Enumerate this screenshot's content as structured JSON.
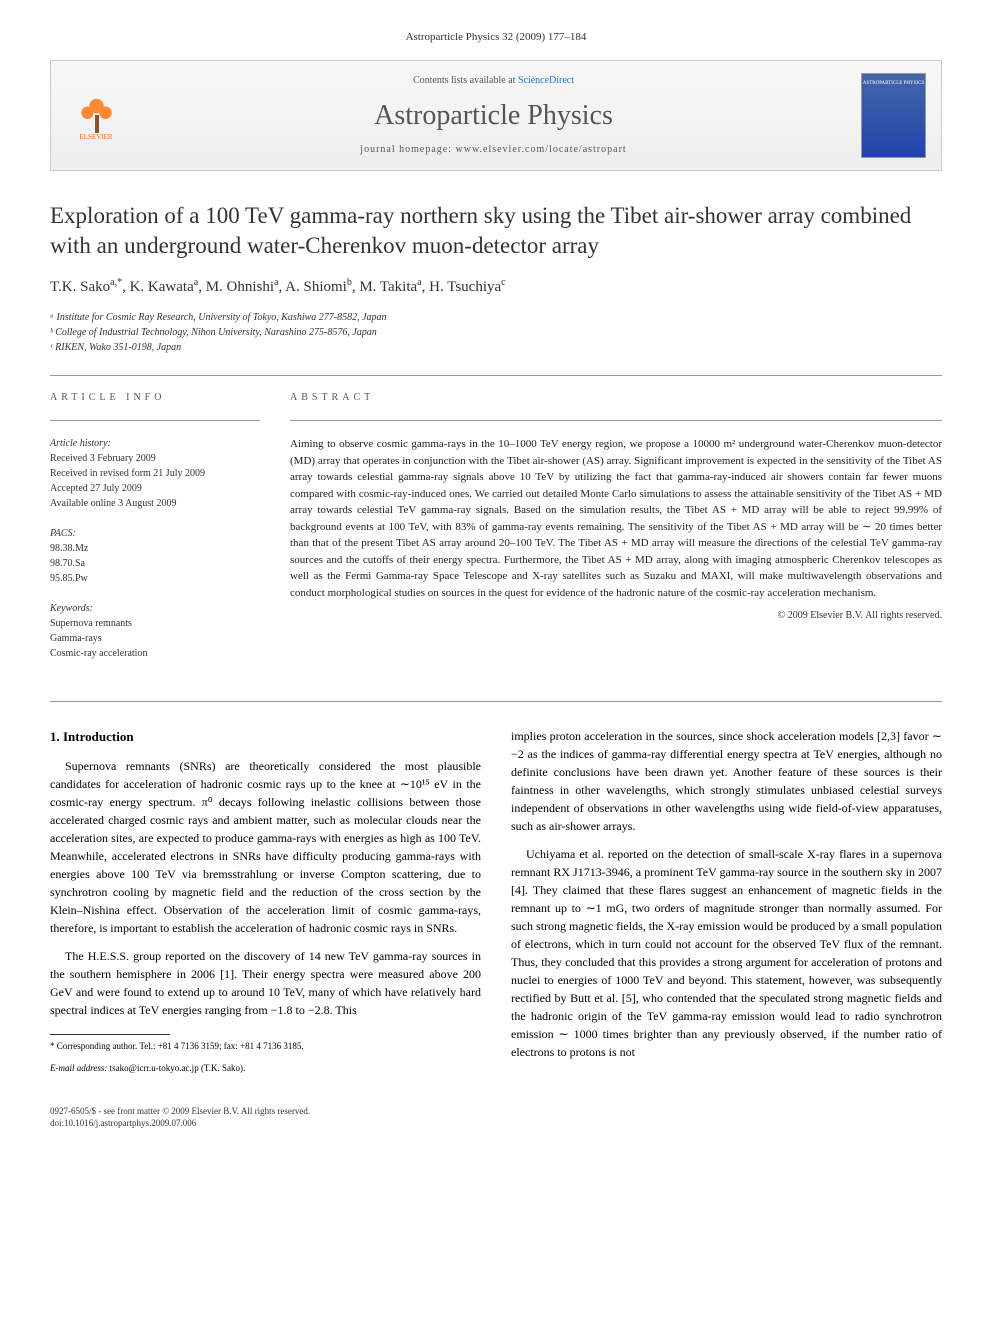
{
  "header": {
    "citation": "Astroparticle Physics 32 (2009) 177–184"
  },
  "banner": {
    "elsevier_label": "ELSEVIER",
    "contents_prefix": "Contents lists available at ",
    "contents_link": "ScienceDirect",
    "journal_name": "Astroparticle Physics",
    "homepage_label": "journal homepage: www.elsevier.com/locate/astropart",
    "cover_text": "ASTROPARTICLE PHYSICS"
  },
  "article": {
    "title": "Exploration of a 100 TeV gamma-ray northern sky using the Tibet air-shower array combined with an underground water-Cherenkov muon-detector array",
    "authors_html": "T.K. Sako<sup>a,*</sup>, K. Kawata<sup>a</sup>, M. Ohnishi<sup>a</sup>, A. Shiomi<sup>b</sup>, M. Takita<sup>a</sup>, H. Tsuchiya<sup>c</sup>",
    "affiliations": [
      "ᵃ Institute for Cosmic Ray Research, University of Tokyo, Kashiwa 277-8582, Japan",
      "ᵇ College of Industrial Technology, Nihon University, Narashino 275-8576, Japan",
      "ᶜ RIKEN, Wako 351-0198, Japan"
    ]
  },
  "info": {
    "heading": "ARTICLE INFO",
    "history_label": "Article history:",
    "history": [
      "Received 3 February 2009",
      "Received in revised form 21 July 2009",
      "Accepted 27 July 2009",
      "Available online 3 August 2009"
    ],
    "pacs_label": "PACS:",
    "pacs": [
      "98.38.Mz",
      "98.70.Sa",
      "95.85.Pw"
    ],
    "keywords_label": "Keywords:",
    "keywords": [
      "Supernova remnants",
      "Gamma-rays",
      "Cosmic-ray acceleration"
    ]
  },
  "abstract": {
    "heading": "ABSTRACT",
    "text": "Aiming to observe cosmic gamma-rays in the 10–1000 TeV energy region, we propose a 10000 m² underground water-Cherenkov muon-detector (MD) array that operates in conjunction with the Tibet air-shower (AS) array. Significant improvement is expected in the sensitivity of the Tibet AS array towards celestial gamma-ray signals above 10 TeV by utilizing the fact that gamma-ray-induced air showers contain far fewer muons compared with cosmic-ray-induced ones. We carried out detailed Monte Carlo simulations to assess the attainable sensitivity of the Tibet AS + MD array towards celestial TeV gamma-ray signals. Based on the simulation results, the Tibet AS + MD array will be able to reject 99.99% of background events at 100 TeV, with 83% of gamma-ray events remaining. The sensitivity of the Tibet AS + MD array will be ∼ 20 times better than that of the present Tibet AS array around 20–100 TeV. The Tibet AS + MD array will measure the directions of the celestial TeV gamma-ray sources and the cutoffs of their energy spectra. Furthermore, the Tibet AS + MD array, along with imaging atmospheric Cherenkov telescopes as well as the Fermi Gamma-ray Space Telescope and X-ray satellites such as Suzaku and MAXI, will make multiwavelength observations and conduct morphological studies on sources in the quest for evidence of the hadronic nature of the cosmic-ray acceleration mechanism.",
    "copyright": "© 2009 Elsevier B.V. All rights reserved."
  },
  "body": {
    "section_heading": "1. Introduction",
    "left_paragraphs": [
      "Supernova remnants (SNRs) are theoretically considered the most plausible candidates for acceleration of hadronic cosmic rays up to the knee at ∼10¹⁵ eV in the cosmic-ray energy spectrum. π⁰ decays following inelastic collisions between those accelerated charged cosmic rays and ambient matter, such as molecular clouds near the acceleration sites, are expected to produce gamma-rays with energies as high as 100 TeV. Meanwhile, accelerated electrons in SNRs have difficulty producing gamma-rays with energies above 100 TeV via bremsstrahlung or inverse Compton scattering, due to synchrotron cooling by magnetic field and the reduction of the cross section by the Klein–Nishina effect. Observation of the acceleration limit of cosmic gamma-rays, therefore, is important to establish the acceleration of hadronic cosmic rays in SNRs.",
      "The H.E.S.S. group reported on the discovery of 14 new TeV gamma-ray sources in the southern hemisphere in 2006 [1]. Their energy spectra were measured above 200 GeV and were found to extend up to around 10 TeV, many of which have relatively hard spectral indices at TeV energies ranging from −1.8 to −2.8. This"
    ],
    "right_paragraphs": [
      "implies proton acceleration in the sources, since shock acceleration models [2,3] favor ∼ −2 as the indices of gamma-ray differential energy spectra at TeV energies, although no definite conclusions have been drawn yet. Another feature of these sources is their faintness in other wavelengths, which strongly stimulates unbiased celestial surveys independent of observations in other wavelengths using wide field-of-view apparatuses, such as air-shower arrays.",
      "Uchiyama et al. reported on the detection of small-scale X-ray flares in a supernova remnant RX J1713-3946, a prominent TeV gamma-ray source in the southern sky in 2007 [4]. They claimed that these flares suggest an enhancement of magnetic fields in the remnant up to ∼1 mG, two orders of magnitude stronger than normally assumed. For such strong magnetic fields, the X-ray emission would be produced by a small population of electrons, which in turn could not account for the observed TeV flux of the remnant. Thus, they concluded that this provides a strong argument for acceleration of protons and nuclei to energies of 1000 TeV and beyond. This statement, however, was subsequently rectified by Butt et al. [5], who contended that the speculated strong magnetic fields and the hadronic origin of the TeV gamma-ray emission would lead to radio synchrotron emission ∼ 1000 times brighter than any previously observed, if the number ratio of electrons to protons is not"
    ]
  },
  "footnote": {
    "corresponding": "* Corresponding author. Tel.: +81 4 7136 3159; fax: +81 4 7136 3185.",
    "email_label": "E-mail address:",
    "email": "tsako@icrr.u-tokyo.ac.jp (T.K. Sako)."
  },
  "footer": {
    "issn": "0927-6505/$ - see front matter © 2009 Elsevier B.V. All rights reserved.",
    "doi": "doi:10.1016/j.astropartphys.2009.07.006"
  },
  "colors": {
    "link": "#2277cc",
    "text": "#222222",
    "heading": "#333333"
  }
}
